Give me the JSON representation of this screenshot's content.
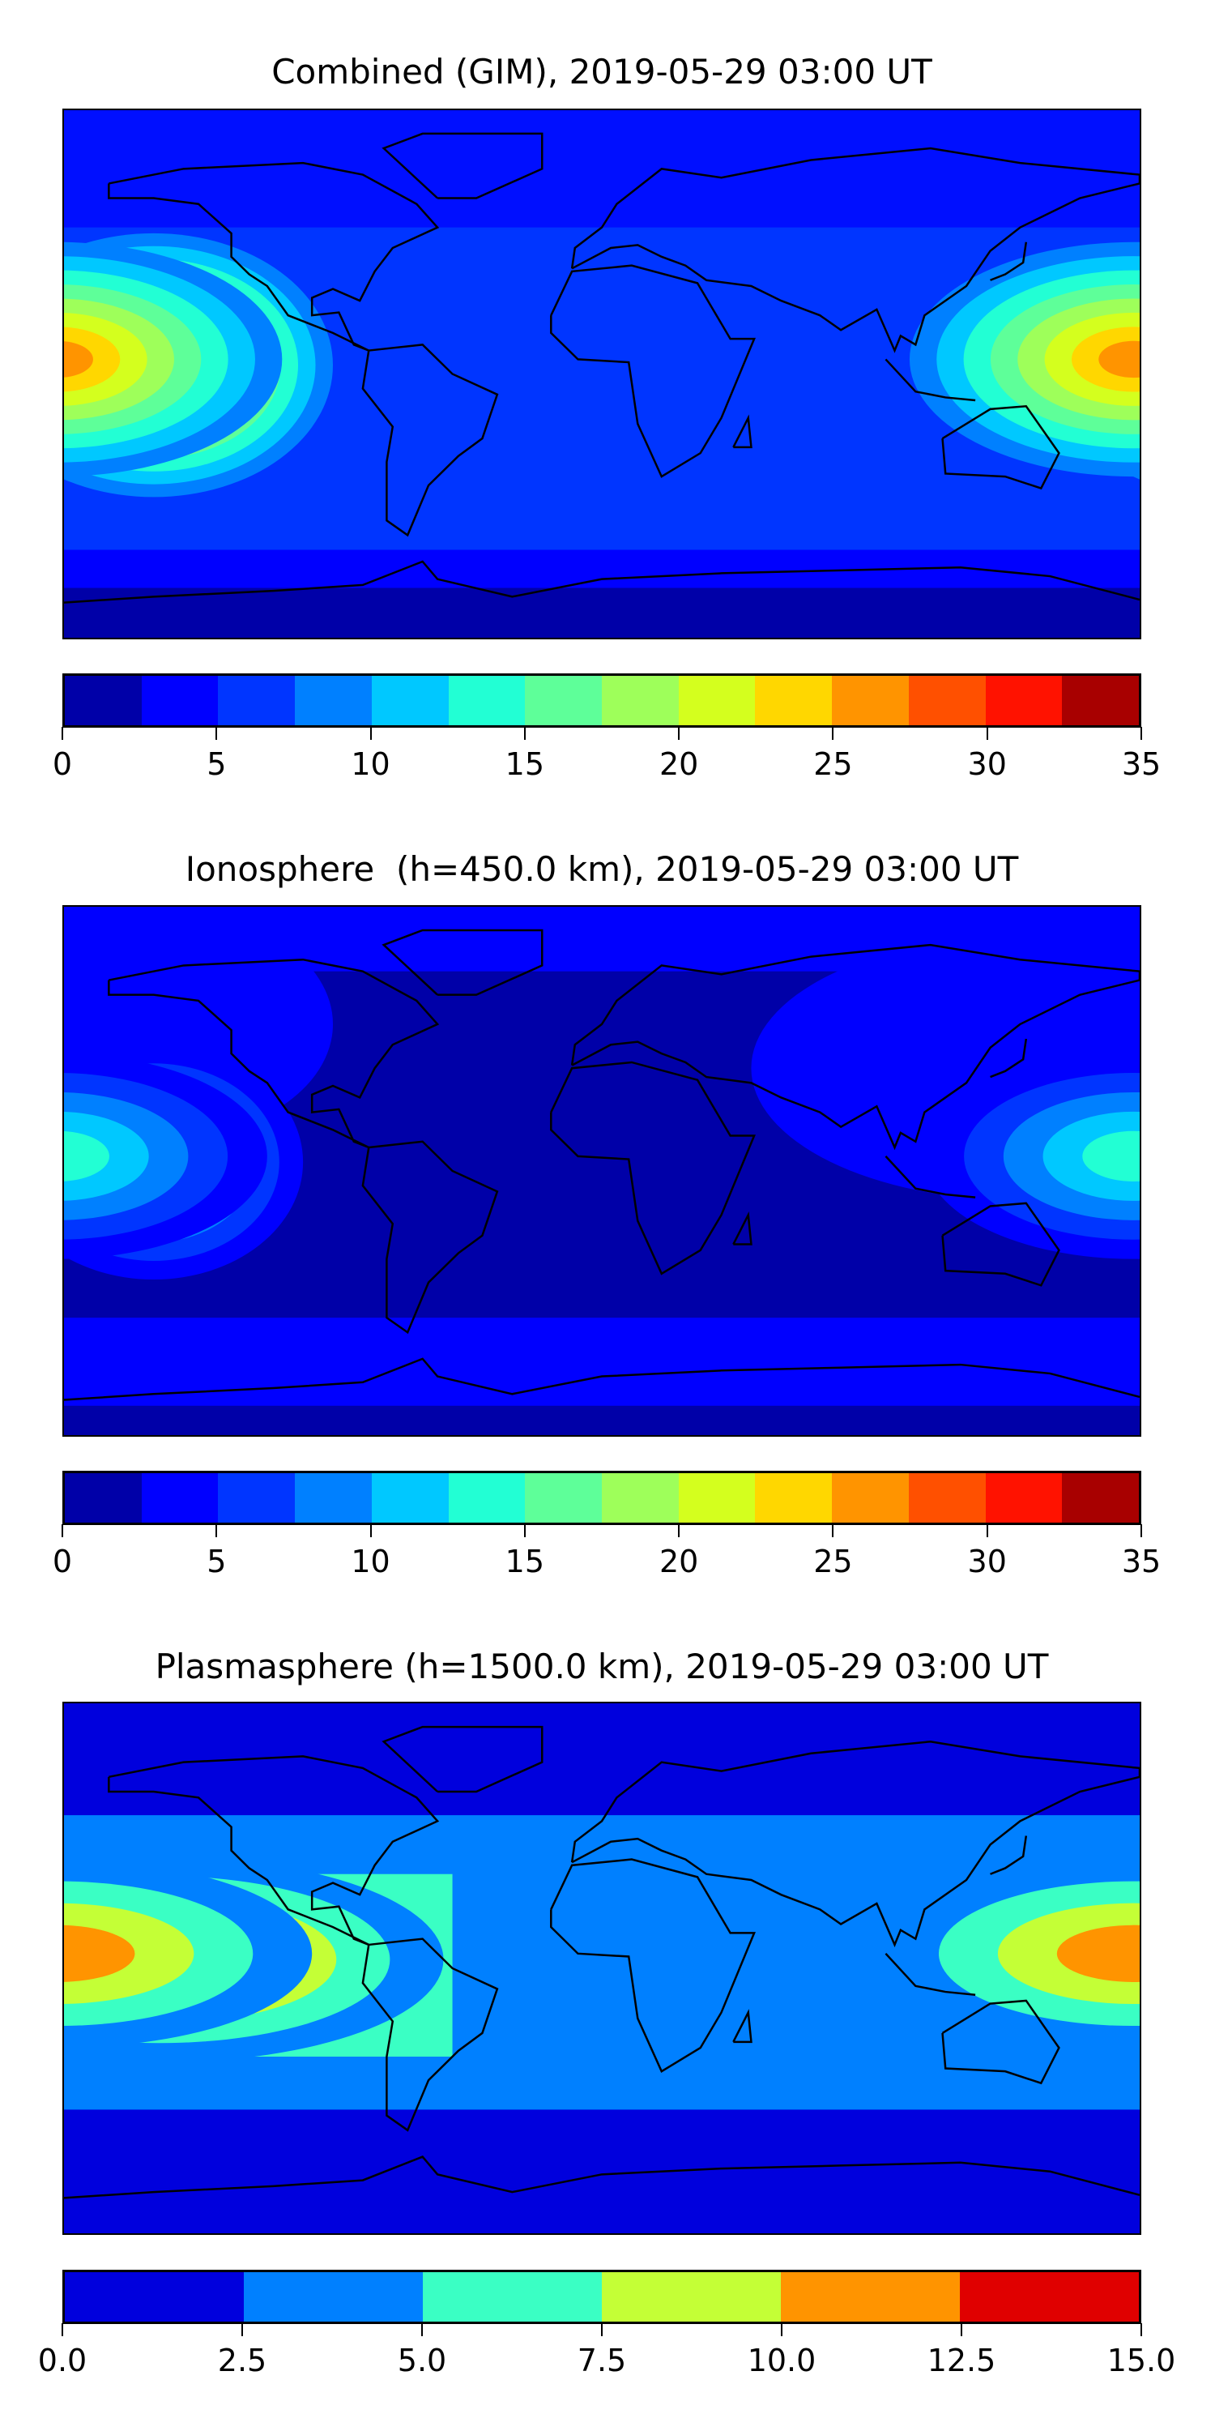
{
  "chart_data": [
    {
      "type": "heatmap",
      "title": "Combined (GIM), 2019-05-29 03:00 UT",
      "projection": "equirectangular world map with coastlines",
      "levels": [
        0,
        2.5,
        5,
        7.5,
        10,
        12.5,
        15,
        17.5,
        20,
        22.5,
        25,
        27.5,
        30,
        32.5,
        35
      ],
      "colors": [
        "#0000a8",
        "#0000ff",
        "#0035ff",
        "#0080ff",
        "#00c8ff",
        "#22ffd4",
        "#5eff99",
        "#9eff5a",
        "#d4ff1e",
        "#ffd700",
        "#ff9400",
        "#ff5000",
        "#ff1200",
        "#a80000"
      ],
      "colorbar_ticks": [
        "0",
        "5",
        "10",
        "15",
        "20",
        "25",
        "30",
        "35"
      ],
      "colorbar_tick_values": [
        0,
        5,
        10,
        15,
        20,
        25,
        30,
        35
      ],
      "vmin": 0,
      "vmax": 35,
      "background_level": 2,
      "features": [
        {
          "name": "pacific-peak",
          "lon": -150,
          "lat": 3,
          "peak_level": 12,
          "rx": 60,
          "ry": 45
        },
        {
          "name": "asia-peak",
          "lon": 178,
          "lat": 5,
          "peak_level": 10,
          "rx": 75,
          "ry": 40
        }
      ]
    },
    {
      "type": "heatmap",
      "title": "Ionosphere  (h=450.0 km), 2019-05-29 03:00 UT",
      "projection": "equirectangular world map with coastlines",
      "levels": [
        0,
        2.5,
        5,
        7.5,
        10,
        12.5,
        15,
        17.5,
        20,
        22.5,
        25,
        27.5,
        30,
        32.5,
        35
      ],
      "colors": [
        "#0000a8",
        "#0000ff",
        "#0035ff",
        "#0080ff",
        "#00c8ff",
        "#22ffd4",
        "#5eff99",
        "#9eff5a",
        "#d4ff1e",
        "#ffd700",
        "#ff9400",
        "#ff5000",
        "#ff1200",
        "#a80000"
      ],
      "colorbar_ticks": [
        "0",
        "5",
        "10",
        "15",
        "20",
        "25",
        "30",
        "35"
      ],
      "colorbar_tick_values": [
        0,
        5,
        10,
        15,
        20,
        25,
        30,
        35
      ],
      "vmin": 0,
      "vmax": 35,
      "background_level": 0,
      "features": [
        {
          "name": "pacific-peak",
          "lon": -150,
          "lat": 3,
          "peak_level": 6,
          "rx": 50,
          "ry": 40
        },
        {
          "name": "asia-peak",
          "lon": 178,
          "lat": 5,
          "peak_level": 5,
          "rx": 70,
          "ry": 35
        }
      ]
    },
    {
      "type": "heatmap",
      "title": "Plasmasphere (h=1500.0 km), 2019-05-29 03:00 UT",
      "projection": "equirectangular world map with coastlines",
      "levels": [
        0,
        2.5,
        5,
        7.5,
        10,
        12.5,
        15
      ],
      "colors": [
        "#0000dd",
        "#0080ff",
        "#3affc4",
        "#c4ff36",
        "#ff9400",
        "#e00000"
      ],
      "colorbar_ticks": [
        "0.0",
        "2.5",
        "5.0",
        "7.5",
        "10.0",
        "12.5",
        "15.0"
      ],
      "colorbar_tick_values": [
        0,
        2.5,
        5,
        7.5,
        10,
        12.5,
        15
      ],
      "vmin": 0,
      "vmax": 15,
      "background_level": 0,
      "features": [
        {
          "name": "pacific-peak",
          "lon": -148,
          "lat": 3,
          "peak_level": 5,
          "rx": 95,
          "ry": 35
        },
        {
          "name": "asia-peak",
          "lon": 178,
          "lat": 5,
          "peak_level": 4,
          "rx": 85,
          "ry": 32
        }
      ]
    }
  ]
}
